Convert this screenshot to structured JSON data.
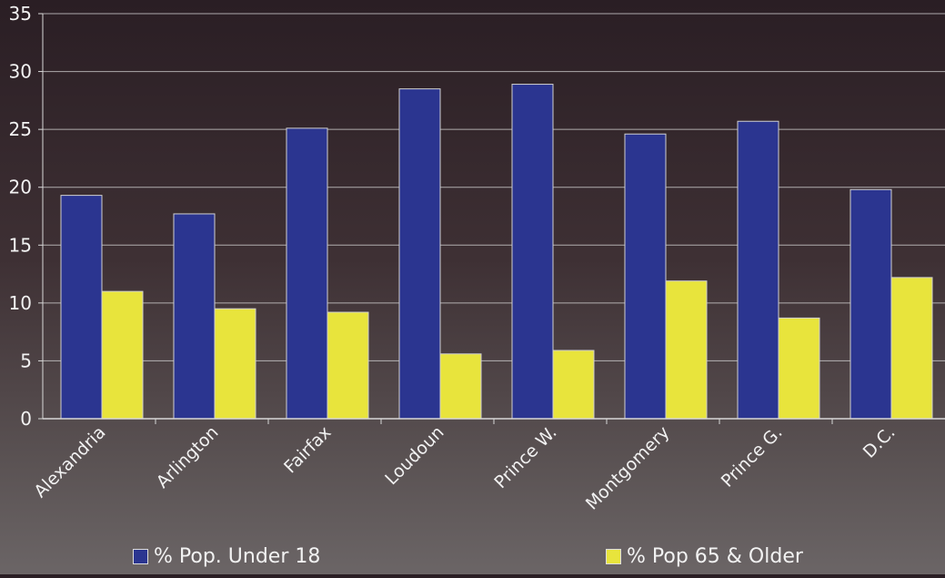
{
  "chart_data": {
    "type": "bar",
    "categories": [
      "Alexandria",
      "Arlington",
      "Fairfax",
      "Loudoun",
      "Prince W.",
      "Montgomery",
      "Prince G.",
      "D.C."
    ],
    "series": [
      {
        "name": "% Pop. Under 18",
        "values": [
          19.3,
          17.7,
          25.1,
          28.5,
          28.9,
          24.6,
          25.7,
          19.8
        ]
      },
      {
        "name": "% Pop 65 & Older",
        "values": [
          11.0,
          9.5,
          9.2,
          5.6,
          5.9,
          11.9,
          8.7,
          12.2
        ]
      }
    ],
    "title": "",
    "xlabel": "",
    "ylabel": "",
    "ylim": [
      0,
      35
    ],
    "yticks": [
      "0",
      "5",
      "10",
      "15",
      "20",
      "25",
      "30",
      "35"
    ],
    "grid": true,
    "legend_placement": "bottom",
    "colors": {
      "under18": "#2b3590",
      "over65": "#e8e43c",
      "grid": "#d8d8d8",
      "text": "#f2f2f2"
    }
  }
}
